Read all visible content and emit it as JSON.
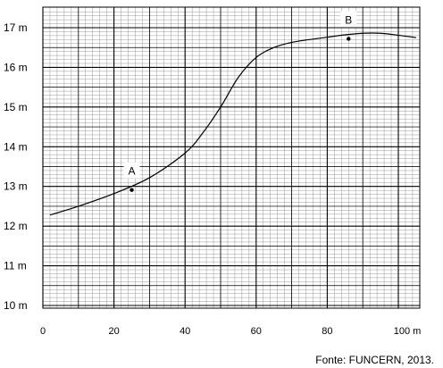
{
  "chart_data": {
    "type": "line",
    "xlim": [
      0,
      105
    ],
    "ylim": [
      10,
      17.4
    ],
    "x_ticks": [
      0,
      20,
      40,
      60,
      80,
      100
    ],
    "x_tick_labels": [
      "0",
      "20",
      "40",
      "60",
      "80",
      "100 m"
    ],
    "y_ticks": [
      10,
      11,
      12,
      13,
      14,
      15,
      16,
      17
    ],
    "y_tick_labels": [
      "10 m",
      "11 m",
      "12 m",
      "13 m",
      "14 m",
      "15 m",
      "16 m",
      "17 m"
    ],
    "grid": true,
    "series": [
      {
        "x": [
          2,
          10,
          20,
          30,
          40,
          45,
          50,
          55,
          60,
          65,
          70,
          75,
          80,
          85,
          90,
          95,
          100,
          105
        ],
        "y": [
          12.28,
          12.5,
          12.82,
          13.22,
          13.84,
          14.35,
          15.0,
          15.75,
          16.25,
          16.5,
          16.63,
          16.7,
          16.76,
          16.82,
          16.86,
          16.86,
          16.81,
          16.75
        ]
      }
    ],
    "points": [
      {
        "label": "A",
        "x": 25,
        "y": 12.91
      },
      {
        "label": "B",
        "x": 86,
        "y": 16.72
      }
    ]
  },
  "source_text": "Fonte: FUNCERN, 2013."
}
